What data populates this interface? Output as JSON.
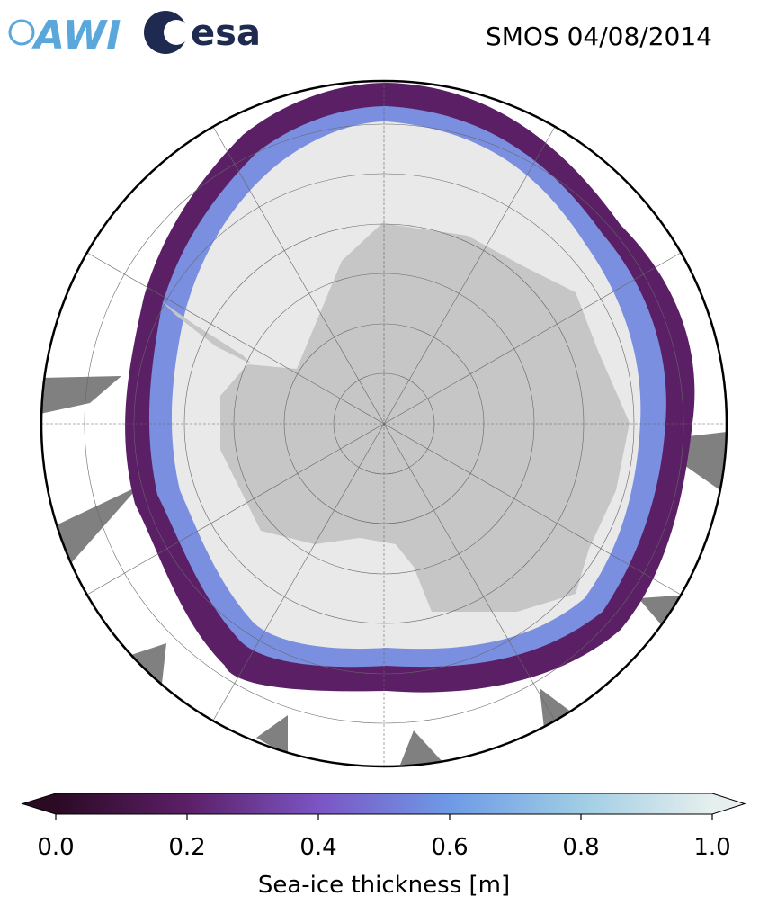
{
  "header": {
    "logos": [
      "AWI",
      "esa"
    ],
    "title": "SMOS 04/08/2014"
  },
  "colorbar": {
    "label": "Sea-ice thickness [m]",
    "lim": [
      0,
      1
    ],
    "ticks": [
      {
        "value": 0,
        "label": "0.0"
      },
      {
        "value": 0.2,
        "label": "0.2"
      },
      {
        "value": 0.4,
        "label": "0.4"
      },
      {
        "value": 0.6,
        "label": "0.6"
      },
      {
        "value": 0.8,
        "label": "0.8"
      },
      {
        "value": 1,
        "label": "1.0"
      }
    ],
    "colors": [
      "#2b0a24",
      "#5b1f66",
      "#7b55c4",
      "#6e9ae6",
      "#9fcde4",
      "#e6efee"
    ]
  }
}
